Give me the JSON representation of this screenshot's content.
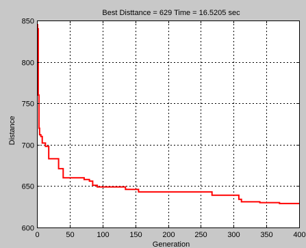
{
  "chart_data": {
    "type": "line",
    "title": "Best Disttance = 629   Time = 16.5205  sec",
    "xlabel": "Generation",
    "ylabel": "Distance",
    "xlim": [
      0,
      400
    ],
    "ylim": [
      600,
      850
    ],
    "xticks": [
      0,
      50,
      100,
      150,
      200,
      250,
      300,
      350,
      400
    ],
    "yticks": [
      600,
      650,
      700,
      750,
      800,
      850
    ],
    "grid": true,
    "colors": {
      "line": "#ff0000",
      "figure_bg": "#c8c8c8",
      "axes_bg": "#ffffff"
    },
    "series": [
      {
        "step": true,
        "x": [
          0,
          1,
          2,
          3,
          4,
          6,
          8,
          13,
          18,
          27,
          33,
          40,
          52,
          62,
          72,
          80,
          85,
          92,
          100,
          112,
          135,
          155,
          175,
          200,
          240,
          267,
          285,
          308,
          312,
          322,
          340,
          370,
          400
        ],
        "y": [
          845,
          840,
          760,
          720,
          712,
          710,
          702,
          698,
          683,
          683,
          671,
          660,
          660,
          660,
          658,
          656,
          651,
          649,
          649,
          649,
          646,
          643,
          643,
          643,
          643,
          639,
          639,
          634,
          631,
          631,
          630,
          629,
          629
        ]
      }
    ]
  }
}
